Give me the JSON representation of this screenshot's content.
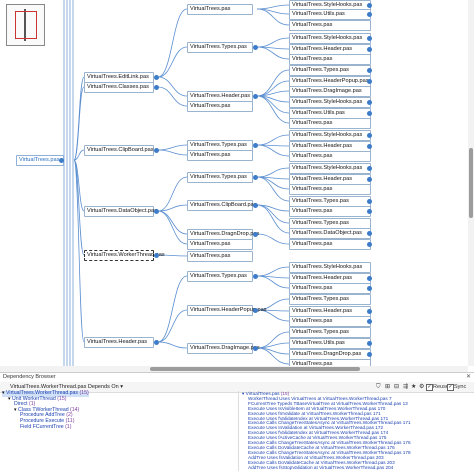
{
  "graph": {
    "root": "VirtualTrees.pas",
    "level1": [
      "VirtualTrees.EditLink.pas",
      "VirtualTrees.Classes.pas",
      "VirtualTrees.ClipBoard.pas",
      "VirtualTrees.DataObject.pas",
      "VirtualTrees.WorkerThread.pas",
      "VirtualTrees.Header.pas"
    ],
    "level2": [
      "VirtualTrees.pas",
      "VirtualTrees.Types.pas",
      "VirtualTrees.Header.pas",
      "VirtualTrees.pas",
      "VirtualTrees.Types.pas",
      "VirtualTrees.pas",
      "VirtualTrees.Types.pas",
      "VirtualTrees.ClipBoard.pas",
      "VirtualTrees.DragnDrop.pas",
      "VirtualTrees.pas",
      "VirtualTrees.pas",
      "VirtualTrees.Types.pas",
      "VirtualTrees.HeaderPopup.pas",
      "VirtualTrees.DragImage.pas"
    ],
    "level3": [
      "VirtualTrees.StyleHooks.pas",
      "VirtualTrees.Utils.pas",
      "VirtualTrees.pas",
      "VirtualTrees.StyleHooks.pas",
      "VirtualTrees.Header.pas",
      "VirtualTrees.pas",
      "VirtualTrees.Types.pas",
      "VirtualTrees.HeaderPopup.pas",
      "VirtualTrees.DragImage.pas",
      "VirtualTrees.StyleHooks.pas",
      "VirtualTrees.Utils.pas",
      "VirtualTrees.pas",
      "VirtualTrees.StyleHooks.pas",
      "VirtualTrees.Header.pas",
      "VirtualTrees.pas",
      "VirtualTrees.StyleHooks.pas",
      "VirtualTrees.Header.pas",
      "VirtualTrees.pas",
      "VirtualTrees.Types.pas",
      "VirtualTrees.pas",
      "VirtualTrees.Types.pas",
      "VirtualTrees.DataObject.pas",
      "VirtualTrees.pas",
      "VirtualTrees.StyleHooks.pas",
      "VirtualTrees.Header.pas",
      "VirtualTrees.pas",
      "VirtualTrees.Types.pas",
      "VirtualTrees.Header.pas",
      "VirtualTrees.pas",
      "VirtualTrees.Types.pas",
      "VirtualTrees.Utils.pas",
      "VirtualTrees.DragnDrop.pas",
      "VirtualTrees.pas"
    ]
  },
  "panel": {
    "title": "Dependency Browser",
    "close": "✕",
    "mode": "VirtualTrees.WorkerThread.pas Depends On",
    "reuse_label": "Reuse",
    "sync_label": "Sync",
    "toolbar_icons": [
      "filter-icon",
      "graph-icon",
      "graph2-icon",
      "layout-icon",
      "star-icon",
      "settings-icon"
    ],
    "tree": [
      {
        "indent": 0,
        "prefix": "▾",
        "name": "VirtualTrees.WorkerThread.pas",
        "count": "(15)"
      },
      {
        "indent": 1,
        "prefix": "▾",
        "kind": "Unit",
        "name": "WorkerThread",
        "count": "(15)"
      },
      {
        "indent": 2,
        "prefix": "",
        "kind": "",
        "name": "Direct",
        "count": "(1)"
      },
      {
        "indent": 2,
        "prefix": "▾",
        "kind": "Class",
        "name": "TWorkerThread",
        "count": "(14)"
      },
      {
        "indent": 3,
        "prefix": "",
        "kind": "Procedure",
        "name": "AddTree",
        "count": "(2)"
      },
      {
        "indent": 3,
        "prefix": "",
        "kind": "Procedure",
        "name": "Execute",
        "count": "(11)"
      },
      {
        "indent": 3,
        "prefix": "",
        "kind": "Field",
        "name": "FCurrentTree",
        "count": "(1)"
      }
    ],
    "deps": [
      {
        "text": "▾ VirtualTrees.pas",
        "count": "(15)"
      },
      {
        "text": "WorkerThread Uses VirtualTrees at VirtualTrees.WorkerThread.pas 7"
      },
      {
        "text": "FCurrentTree Typeds TBaseVirtualTree at VirtualTrees.WorkerThread.pas 13"
      },
      {
        "text": "Execute Uses IsVisibleItem at VirtualTrees.WorkerThread.pas 170"
      },
      {
        "text": "Execute Uses fInValidate at VirtualTrees.WorkerThread.pas 171"
      },
      {
        "text": "Execute Uses fValidateIndex at VirtualTrees.WorkerThread.pas 171"
      },
      {
        "text": "Execute Calls ChangeTreeStatesAsync at VirtualTrees.WorkerThread.pas 171"
      },
      {
        "text": "Execute Uses InValidation at VirtualTrees.WorkerThread.pas 172"
      },
      {
        "text": "Execute Uses fValidateIndex at VirtualTrees.WorkerThread.pas 174"
      },
      {
        "text": "Execute Uses fActiveCache at VirtualTrees.WorkerThread.pas 175"
      },
      {
        "text": "Execute Calls ChangeTreeStatesAsync at VirtualTrees.WorkerThread.pas 176"
      },
      {
        "text": "Execute Calls DoValidateCache at VirtualTrees.WorkerThread.pas 176"
      },
      {
        "text": "Execute Calls ChangeTreeStatesAsync at VirtualTrees.WorkerThread.pas 178"
      },
      {
        "text": "AddTree Uses fsValidation at VirtualTrees.WorkerThread.pas 203"
      },
      {
        "text": "Execute Calls DoValidateCache at VirtualTrees.WorkerThread.pas 203"
      },
      {
        "text": "AddTree Uses fsStopValidation at VirtualTrees.WorkerThread.pas 204"
      }
    ]
  }
}
